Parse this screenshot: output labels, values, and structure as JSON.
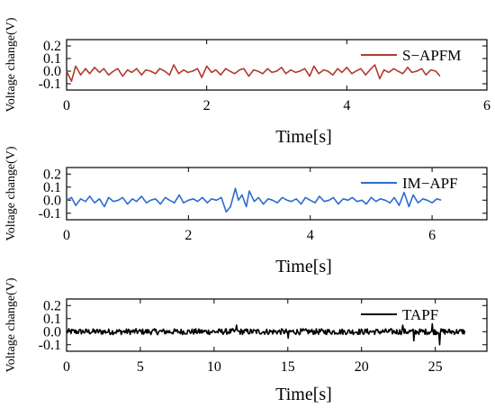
{
  "chart_data": [
    {
      "type": "line",
      "xlabel": "Time[s]",
      "ylabel": "Voltage change(V)",
      "xlim": [
        0,
        6
      ],
      "ylim": [
        -0.15,
        0.25
      ],
      "xticks": [
        "0",
        "2",
        "4",
        "6"
      ],
      "yticks": [
        "0.2",
        "0.1",
        "0.0",
        "-0.1"
      ],
      "legend_position": "top-right",
      "series": [
        {
          "name": "S−APFM",
          "color": "#b03a2e",
          "x": [
            0.0,
            0.07,
            0.13,
            0.2,
            0.27,
            0.33,
            0.4,
            0.47,
            0.53,
            0.6,
            0.67,
            0.73,
            0.8,
            0.87,
            0.93,
            1.0,
            1.07,
            1.13,
            1.2,
            1.27,
            1.33,
            1.4,
            1.47,
            1.53,
            1.6,
            1.67,
            1.73,
            1.8,
            1.87,
            1.93,
            2.0,
            2.07,
            2.13,
            2.2,
            2.27,
            2.33,
            2.4,
            2.47,
            2.53,
            2.6,
            2.67,
            2.73,
            2.8,
            2.87,
            2.93,
            3.0,
            3.07,
            3.13,
            3.2,
            3.27,
            3.33,
            3.4,
            3.47,
            3.53,
            3.6,
            3.67,
            3.73,
            3.8,
            3.87,
            3.93,
            4.0,
            4.07,
            4.13,
            4.2,
            4.27,
            4.33,
            4.4,
            4.47,
            4.53,
            4.6,
            4.67,
            4.73,
            4.8,
            4.87,
            4.93,
            5.0,
            5.07,
            5.13,
            5.2,
            5.27,
            5.33
          ],
          "y": [
            0.0,
            -0.08,
            0.04,
            -0.03,
            0.02,
            -0.02,
            0.03,
            -0.01,
            0.02,
            -0.03,
            0.0,
            0.02,
            -0.04,
            0.01,
            -0.01,
            0.02,
            -0.03,
            0.01,
            0.0,
            -0.02,
            0.02,
            0.0,
            -0.03,
            0.05,
            -0.02,
            0.01,
            -0.01,
            0.0,
            0.02,
            -0.05,
            0.04,
            -0.01,
            0.01,
            -0.03,
            0.02,
            0.0,
            -0.02,
            0.01,
            0.02,
            -0.04,
            0.01,
            0.0,
            -0.02,
            0.02,
            -0.01,
            0.0,
            0.03,
            -0.02,
            0.01,
            -0.01,
            0.0,
            0.02,
            -0.04,
            0.04,
            -0.02,
            0.01,
            0.0,
            -0.03,
            0.02,
            -0.01,
            0.03,
            -0.02,
            0.0,
            0.02,
            -0.03,
            0.01,
            0.05,
            -0.06,
            0.01,
            -0.01,
            0.02,
            0.0,
            -0.02,
            0.03,
            -0.01,
            0.0,
            0.02,
            -0.03,
            0.01,
            0.0,
            -0.04
          ]
        }
      ]
    },
    {
      "type": "line",
      "xlabel": "Time[s]",
      "ylabel": "Voltage change(V)",
      "xlim": [
        0,
        6.9
      ],
      "ylim": [
        -0.15,
        0.25
      ],
      "xticks": [
        "0",
        "2",
        "4",
        "6"
      ],
      "yticks": [
        "0.2",
        "0.1",
        "0.0",
        "-0.1"
      ],
      "legend_position": "top-right",
      "series": [
        {
          "name": "IM−APF",
          "color": "#2e6bd0",
          "x": [
            0.0,
            0.08,
            0.15,
            0.23,
            0.31,
            0.38,
            0.46,
            0.54,
            0.62,
            0.69,
            0.77,
            0.85,
            0.92,
            1.0,
            1.08,
            1.15,
            1.23,
            1.31,
            1.38,
            1.46,
            1.54,
            1.62,
            1.69,
            1.77,
            1.85,
            1.92,
            2.0,
            2.08,
            2.15,
            2.23,
            2.31,
            2.38,
            2.46,
            2.54,
            2.62,
            2.69,
            2.77,
            2.82,
            2.88,
            2.95,
            3.0,
            3.08,
            3.15,
            3.23,
            3.31,
            3.38,
            3.46,
            3.54,
            3.62,
            3.69,
            3.77,
            3.85,
            3.92,
            4.0,
            4.08,
            4.15,
            4.23,
            4.31,
            4.38,
            4.46,
            4.54,
            4.62,
            4.69,
            4.77,
            4.85,
            4.92,
            5.0,
            5.08,
            5.15,
            5.23,
            5.31,
            5.38,
            5.46,
            5.54,
            5.62,
            5.69,
            5.77,
            5.85,
            5.92,
            6.0,
            6.08,
            6.15
          ],
          "y": [
            0.0,
            0.02,
            -0.04,
            0.01,
            -0.01,
            0.03,
            -0.02,
            0.01,
            -0.05,
            0.02,
            -0.01,
            0.0,
            0.02,
            -0.03,
            0.01,
            -0.01,
            0.03,
            -0.02,
            0.0,
            0.01,
            -0.03,
            0.02,
            0.0,
            -0.02,
            0.04,
            -0.02,
            0.0,
            0.01,
            -0.01,
            0.02,
            -0.02,
            0.01,
            0.0,
            0.02,
            -0.09,
            -0.05,
            0.09,
            0.0,
            0.04,
            -0.05,
            0.07,
            -0.01,
            0.02,
            -0.03,
            0.01,
            0.0,
            -0.02,
            0.02,
            0.0,
            -0.01,
            0.01,
            -0.03,
            0.02,
            0.0,
            -0.02,
            0.03,
            -0.01,
            0.0,
            0.02,
            -0.03,
            0.01,
            0.0,
            0.02,
            -0.01,
            0.0,
            -0.03,
            0.02,
            -0.01,
            0.01,
            0.0,
            -0.02,
            0.02,
            -0.04,
            0.06,
            -0.05,
            0.04,
            -0.02,
            0.01,
            0.0,
            -0.02,
            0.01,
            0.0
          ]
        }
      ]
    },
    {
      "type": "line",
      "xlabel": "Time[s]",
      "ylabel": "Voltage change(V)",
      "xlim": [
        0,
        28.5
      ],
      "ylim": [
        -0.15,
        0.25
      ],
      "xticks": [
        "0",
        "5",
        "10",
        "15",
        "20",
        "25"
      ],
      "yticks": [
        "0.2",
        "0.1",
        "0.0",
        "-0.1"
      ],
      "legend_position": "top-right",
      "series": [
        {
          "name": "TAPF",
          "color": "#000000"
        }
      ]
    }
  ]
}
